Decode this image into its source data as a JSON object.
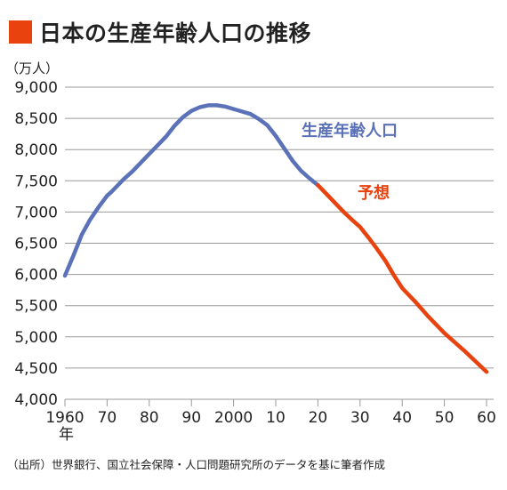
{
  "header": {
    "title": "日本の生産年齢人口の推移",
    "accent_color": "#e8430f"
  },
  "source_note": "（出所）世界銀行、国立社会保障・人口問題研究所のデータを基に筆者作成",
  "chart_data": {
    "type": "line",
    "title": "日本の生産年齢人口の推移",
    "ylabel": "（万人）",
    "xlabel": "年",
    "xlim": [
      1960,
      2060
    ],
    "ylim": [
      4000,
      9000
    ],
    "yticks": [
      4000,
      4500,
      5000,
      5500,
      6000,
      6500,
      7000,
      7500,
      8000,
      8500,
      9000
    ],
    "ytick_labels": [
      "4,000",
      "4,500",
      "5,000",
      "5,500",
      "6,000",
      "6,500",
      "7,000",
      "7,500",
      "8,000",
      "8,500",
      "9,000"
    ],
    "xticks": [
      1960,
      1970,
      1980,
      1990,
      2000,
      2010,
      2020,
      2030,
      2040,
      2050,
      2060
    ],
    "xtick_labels": [
      "1960",
      "70",
      "80",
      "90",
      "2000",
      "10",
      "20",
      "30",
      "40",
      "50",
      "60"
    ],
    "grid": "horizontal",
    "series": [
      {
        "name": "生産年齢人口",
        "color": "#5b72b8",
        "x": [
          1960,
          1962,
          1964,
          1966,
          1968,
          1970,
          1971,
          1974,
          1976,
          1978,
          1980,
          1982,
          1984,
          1986,
          1988,
          1990,
          1992,
          1994,
          1996,
          1998,
          2000,
          2002,
          2004,
          2006,
          2008,
          2010,
          2012,
          2014,
          2016,
          2018,
          2020
        ],
        "values": [
          5980,
          6300,
          6640,
          6880,
          7080,
          7260,
          7320,
          7530,
          7650,
          7790,
          7930,
          8070,
          8210,
          8380,
          8520,
          8620,
          8680,
          8710,
          8710,
          8690,
          8650,
          8610,
          8570,
          8490,
          8390,
          8220,
          8020,
          7820,
          7660,
          7540,
          7430
        ]
      },
      {
        "name": "予想",
        "color": "#e8430f",
        "x": [
          2020,
          2022,
          2024,
          2026,
          2028,
          2030,
          2032,
          2034,
          2036,
          2038,
          2040,
          2043,
          2046,
          2050,
          2055,
          2060
        ],
        "values": [
          7430,
          7290,
          7150,
          7010,
          6880,
          6760,
          6590,
          6410,
          6220,
          5990,
          5780,
          5570,
          5340,
          5060,
          4760,
          4440
        ]
      }
    ]
  }
}
